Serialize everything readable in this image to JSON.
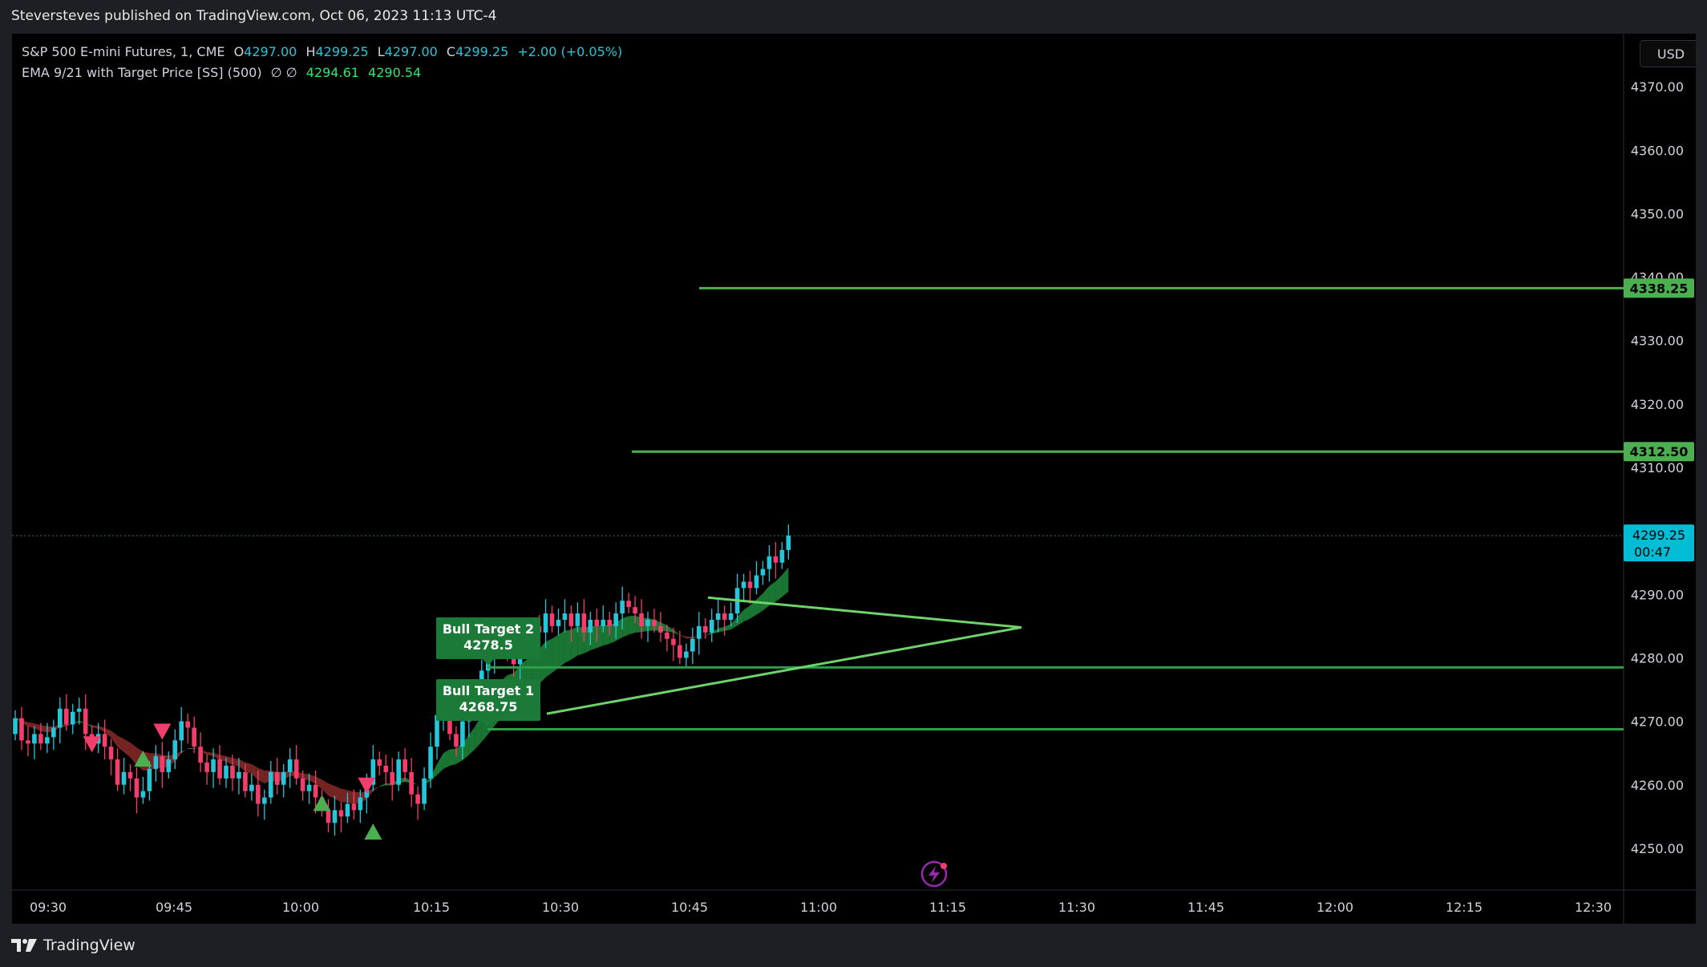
{
  "header": {
    "published_text": "Steversteves published on TradingView.com, Oct 06, 2023 11:13 UTC-4"
  },
  "legend": {
    "symbol": "S&P 500 E-mini Futures, 1, CME",
    "open_label": "O",
    "open": "4297.00",
    "high_label": "H",
    "high": "4299.25",
    "low_label": "L",
    "low": "4297.00",
    "close_label": "C",
    "close": "4299.25",
    "change": "+2.00 (+0.05%)",
    "indicator": "EMA 9/21 with Target Price [SS] (500)",
    "indicator_flags": "∅  ∅",
    "ema_fast": "4294.61",
    "ema_slow": "4290.54"
  },
  "currency_button": "USD",
  "colors": {
    "up": "#26c6da",
    "down": "#f23d6d",
    "target_green": "#4caf50",
    "label_green": "#1b7a37",
    "ema_bull_fill": "#1f8a3c",
    "ema_bear_fill": "#8a2a2a"
  },
  "price_axis": {
    "ticks": [
      "4370.00",
      "4360.00",
      "4350.00",
      "4340.00",
      "4330.00",
      "4320.00",
      "4310.00",
      "4290.00",
      "4280.00",
      "4270.00",
      "4260.00",
      "4250.00"
    ],
    "badges": {
      "target_upper": "4338.25",
      "target_lower": "4312.50",
      "last_price": "4299.25",
      "countdown": "00:47"
    }
  },
  "time_axis": {
    "ticks": [
      "09:30",
      "09:45",
      "10:00",
      "10:15",
      "10:30",
      "10:45",
      "11:00",
      "11:15",
      "11:30",
      "11:45",
      "12:00",
      "12:15",
      "12:30"
    ]
  },
  "annotations": {
    "bull_target_2": {
      "title": "Bull Target 2",
      "value": "4278.5"
    },
    "bull_target_1": {
      "title": "Bull Target 1",
      "value": "4268.75"
    }
  },
  "chart_data": {
    "type": "candlestick",
    "xlabel": "",
    "ylabel": "",
    "ylim": [
      4244,
      4375
    ],
    "y_ticks": [
      4250,
      4260,
      4270,
      4280,
      4290,
      4300,
      4310,
      4320,
      4330,
      4340,
      4350,
      4360,
      4370
    ],
    "x_ticks": [
      "09:30",
      "09:45",
      "10:00",
      "10:15",
      "10:30",
      "10:45",
      "11:00",
      "11:15",
      "11:30",
      "11:45",
      "12:00",
      "12:15",
      "12:30"
    ],
    "target_lines": [
      4338.25,
      4312.5,
      4278.5,
      4268.75
    ],
    "last_price": 4299.25,
    "closes": [
      4270.5,
      4267,
      4266.5,
      4268,
      4266.5,
      4267.5,
      4269,
      4272,
      4269.5,
      4271.5,
      4272,
      4268,
      4266.5,
      4268,
      4266,
      4264,
      4260,
      4262,
      4261,
      4258,
      4259,
      4262.5,
      4264.5,
      4262,
      4264,
      4267,
      4270,
      4269,
      4266,
      4263.5,
      4262,
      4264,
      4261,
      4263,
      4261,
      4262,
      4259,
      4260,
      4257,
      4258,
      4262,
      4260,
      4262,
      4264,
      4261,
      4259,
      4260,
      4258,
      4256,
      4254,
      4256,
      4255,
      4257,
      4256,
      4258,
      4260,
      4264,
      4263,
      4262,
      4260,
      4264,
      4262,
      4258.5,
      4257,
      4261,
      4266,
      4271,
      4272,
      4268,
      4266,
      4270,
      4273,
      4275,
      4278,
      4280,
      4282,
      4283,
      4281,
      4279,
      4284,
      4283,
      4285,
      4284,
      4287,
      4285,
      4286,
      4287,
      4285,
      4287,
      4284,
      4286,
      4285,
      4286,
      4285,
      4287,
      4289,
      4288,
      4287,
      4285,
      4286,
      4285,
      4284,
      4283,
      4282,
      4280,
      4281,
      4283,
      4285,
      4284,
      4286,
      4287,
      4286,
      4287,
      4291,
      4292,
      4291,
      4293,
      4294,
      4296,
      4295,
      4297,
      4299.25
    ]
  },
  "brand": {
    "name": "TradingView"
  }
}
